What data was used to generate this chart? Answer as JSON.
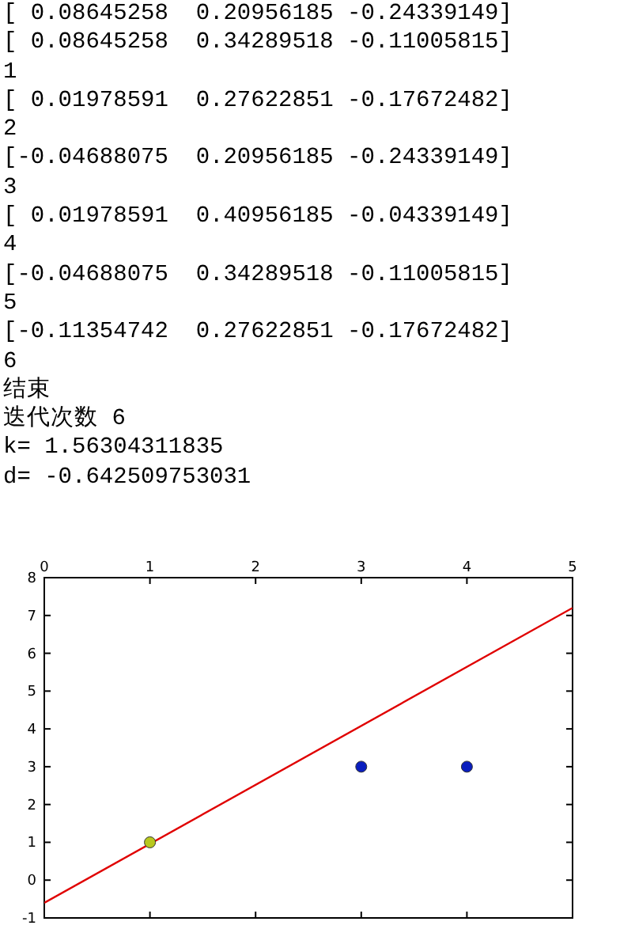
{
  "chart_data": {
    "type": "scatter",
    "annotations": [
      "[ 0.08645258  0.20956185 -0.24339149]",
      "[ 0.08645258  0.34289518 -0.11005815]",
      "1",
      "[ 0.01978591  0.27622851 -0.17672482]",
      "2",
      "[-0.04688075  0.20956185 -0.24339149]",
      "3",
      "[ 0.01978591  0.40956185 -0.04339149]",
      "4",
      "[-0.04688075  0.34289518 -0.11005815]",
      "5",
      "[-0.11354742  0.27622851 -0.17672482]",
      "6",
      "结束",
      "迭代次数 6",
      "k= 1.56304311835",
      "d= -0.642509753031"
    ],
    "series": [
      {
        "type": "line",
        "color": "#e00000",
        "x": [
          0,
          5
        ],
        "values": [
          -0.6,
          7.2
        ]
      },
      {
        "color": "#b8c81e",
        "marker": "circle",
        "x": [
          1
        ],
        "values": [
          1
        ]
      },
      {
        "color": "#0a1ebe",
        "marker": "circle",
        "x": [
          3,
          4
        ],
        "values": [
          3,
          3
        ]
      }
    ],
    "xlim": [
      0,
      5
    ],
    "ylim": [
      -1,
      8
    ],
    "xticks": [
      0,
      1,
      2,
      3,
      4,
      5
    ],
    "yticks": [
      -1,
      0,
      1,
      2,
      3,
      4,
      5,
      6,
      7,
      8
    ],
    "grid": false
  }
}
